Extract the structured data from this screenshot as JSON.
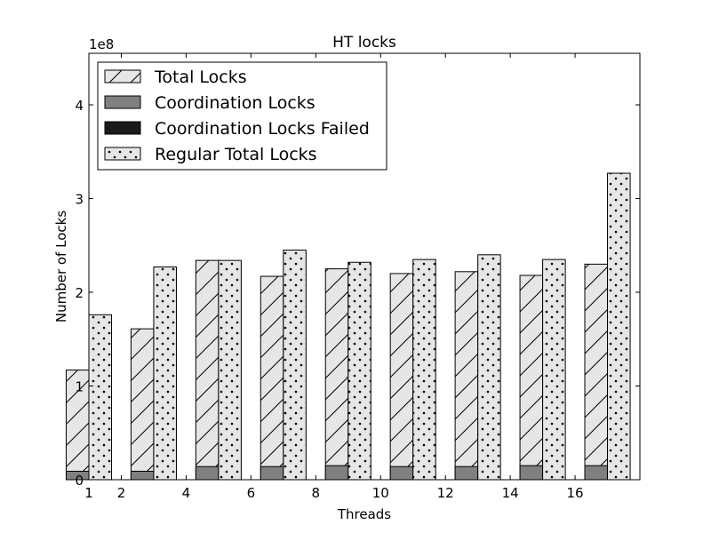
{
  "chart_data": {
    "type": "bar",
    "title": "HT locks",
    "xlabel": "Threads",
    "ylabel": "Number of Locks",
    "y_multiplier": "1e8",
    "xlim": [
      1,
      18
    ],
    "ylim": [
      0,
      4.55
    ],
    "x_ticks": [
      1,
      2,
      4,
      6,
      8,
      10,
      12,
      14,
      16
    ],
    "y_ticks": [
      0,
      1,
      2,
      3,
      4
    ],
    "legend_position": "upper-left",
    "categories": [
      1,
      3,
      5,
      7,
      9,
      11,
      13,
      15,
      17
    ],
    "series": [
      {
        "name": "Total Locks",
        "values": [
          1.17,
          1.61,
          2.34,
          2.17,
          2.25,
          2.2,
          2.22,
          2.18,
          2.3
        ],
        "color": "#e6e6e6",
        "pattern": "diagonal"
      },
      {
        "name": "Coordination Locks",
        "values": [
          0.09,
          0.09,
          0.14,
          0.14,
          0.15,
          0.14,
          0.14,
          0.15,
          0.15
        ],
        "color": "#808080",
        "pattern": "solid"
      },
      {
        "name": "Coordination Locks Failed",
        "values": [
          0,
          0,
          0,
          0,
          0,
          0,
          0,
          0,
          0
        ],
        "color": "#1a1a1a",
        "pattern": "solid"
      },
      {
        "name": "Regular Total Locks",
        "values": [
          1.76,
          2.27,
          2.34,
          2.45,
          2.32,
          2.35,
          2.4,
          2.35,
          3.27
        ],
        "color": "#e6e6e6",
        "pattern": "dots"
      }
    ]
  }
}
